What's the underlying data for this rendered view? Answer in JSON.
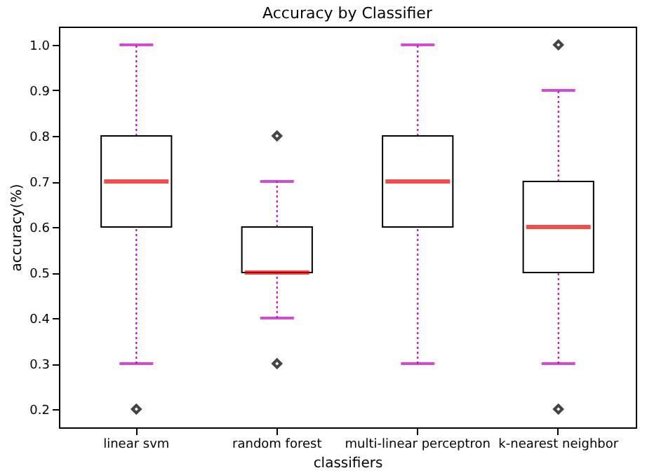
{
  "chart_data": {
    "type": "box",
    "title": "Accuracy by Classifier",
    "xlabel": "classifiers",
    "ylabel": "accuracy(%)",
    "categories": [
      "linear svm",
      "random forest",
      "multi-linear perceptron",
      "k-nearest neighbor"
    ],
    "boxes": [
      {
        "low": 0.3,
        "q1": 0.6,
        "median": 0.7,
        "q3": 0.8,
        "high": 1.0,
        "outliers": [
          0.2
        ]
      },
      {
        "low": 0.4,
        "q1": 0.5,
        "median": 0.5,
        "q3": 0.6,
        "high": 0.7,
        "outliers": [
          0.8,
          0.3
        ]
      },
      {
        "low": 0.3,
        "q1": 0.6,
        "median": 0.7,
        "q3": 0.8,
        "high": 1.0
      },
      {
        "low": 0.3,
        "q1": 0.5,
        "median": 0.6,
        "q3": 0.7,
        "high": 0.9,
        "outliers": [
          1.0,
          0.2
        ]
      }
    ],
    "ylim": [
      0.16,
      1.04
    ],
    "yticks": [
      0.2,
      0.3,
      0.4,
      0.5,
      0.6,
      0.7,
      0.8,
      0.9,
      {
        "value": 1.0,
        "label": "1.0"
      }
    ],
    "grid": false,
    "marker": "diamond"
  }
}
